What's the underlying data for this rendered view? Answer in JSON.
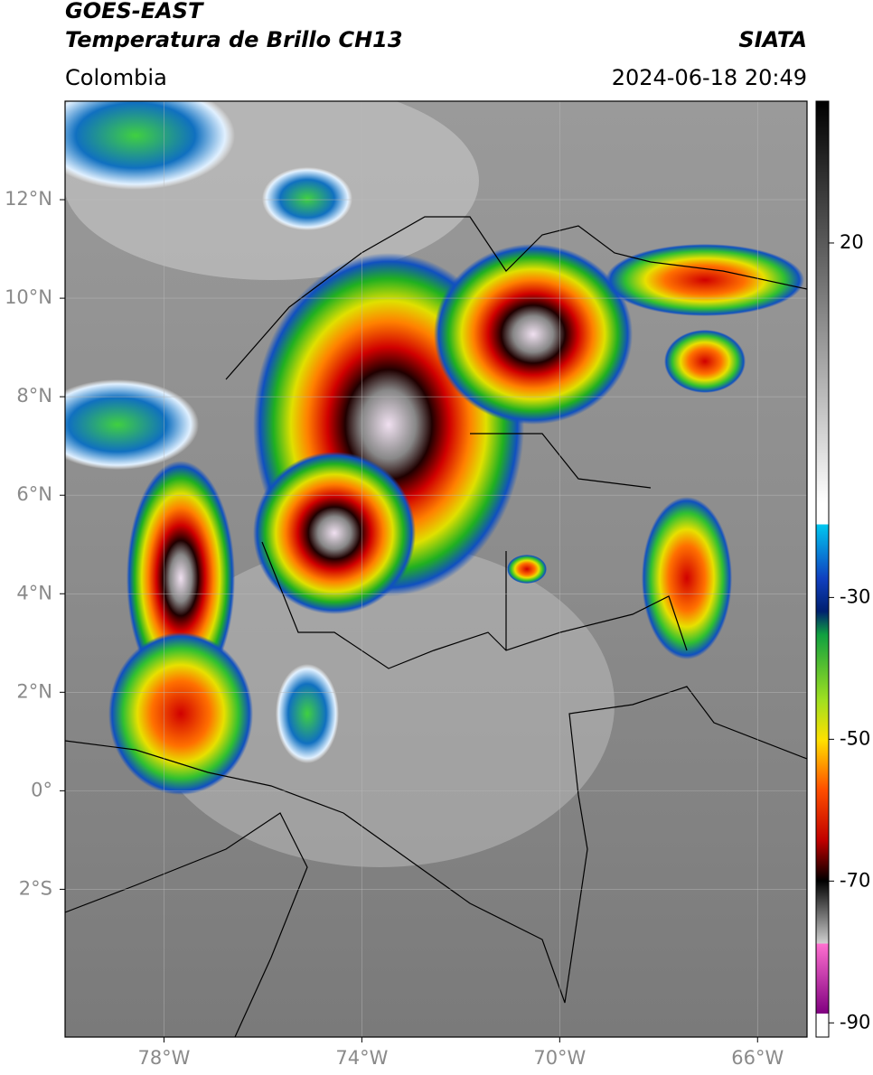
{
  "header": {
    "title": "GOES-EAST",
    "subtitle": "Temperatura de Brillo CH13",
    "source": "SIATA",
    "region": "Colombia",
    "datetime": "2024-06-18 20:49"
  },
  "map": {
    "xlim": [
      -80,
      -65
    ],
    "ylim": [
      -5,
      14
    ],
    "xticks": [
      {
        "value": -78,
        "label": "78°W"
      },
      {
        "value": -74,
        "label": "74°W"
      },
      {
        "value": -70,
        "label": "70°W"
      },
      {
        "value": -66,
        "label": "66°W"
      }
    ],
    "yticks": [
      {
        "value": 12,
        "label": "12°N"
      },
      {
        "value": 10,
        "label": "10°N"
      },
      {
        "value": 8,
        "label": "8°N"
      },
      {
        "value": 6,
        "label": "6°N"
      },
      {
        "value": 4,
        "label": "4°N"
      },
      {
        "value": 2,
        "label": "2°N"
      },
      {
        "value": 0,
        "label": "0°"
      },
      {
        "value": -2,
        "label": "2°S"
      }
    ]
  },
  "colorbar": {
    "lim": [
      -92,
      40
    ],
    "ticks": [
      20,
      -30,
      -50,
      -70,
      -90
    ]
  }
}
